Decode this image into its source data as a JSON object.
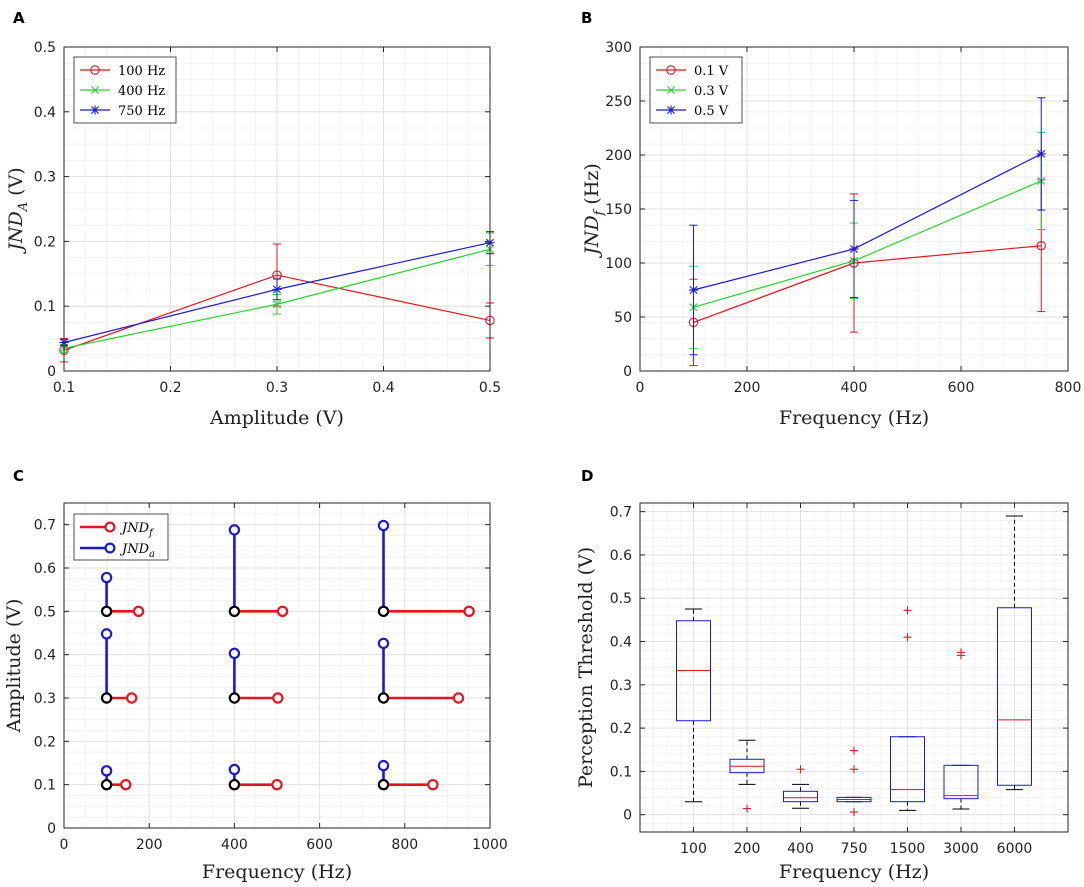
{
  "chart_data": [
    {
      "panel": "A",
      "type": "line",
      "xlabel": "Amplitude (V)",
      "ylabel_main": "JND",
      "ylabel_sub": "A",
      "ylabel_unit": "(V)",
      "xlim": [
        0.1,
        0.5
      ],
      "ylim": [
        0,
        0.5
      ],
      "xticks": [
        0.1,
        0.2,
        0.3,
        0.4,
        0.5
      ],
      "xticklabels": [
        "0.1",
        "0.2",
        "0.3",
        "0.4",
        "0.5"
      ],
      "yticks": [
        0,
        0.1,
        0.2,
        0.3,
        0.4,
        0.5
      ],
      "yticklabels": [
        "0",
        "0.1",
        "0.2",
        "0.3",
        "0.4",
        "0.5"
      ],
      "legend_position": "top-left",
      "x": [
        0.1,
        0.3,
        0.5
      ],
      "series": [
        {
          "name": "100 Hz",
          "color": "#e8141e",
          "marker": "circle",
          "values": [
            0.032,
            0.148,
            0.078
          ],
          "err": [
            0.018,
            0.048,
            0.027
          ]
        },
        {
          "name": "400 Hz",
          "color": "#22d62a",
          "marker": "x",
          "values": [
            0.035,
            0.103,
            0.188
          ],
          "err": [
            0.006,
            0.015,
            0.025
          ]
        },
        {
          "name": "750 Hz",
          "color": "#1a1ad6",
          "marker": "star",
          "values": [
            0.044,
            0.126,
            0.198
          ],
          "err": [
            0.005,
            0.016,
            0.017
          ]
        }
      ]
    },
    {
      "panel": "B",
      "type": "line",
      "xlabel": "Frequency (Hz)",
      "ylabel_main": "JND",
      "ylabel_sub": "f",
      "ylabel_unit": "(Hz)",
      "xlim": [
        0,
        800
      ],
      "ylim": [
        0,
        300
      ],
      "xticks": [
        0,
        200,
        400,
        600,
        800
      ],
      "xticklabels": [
        "0",
        "200",
        "400",
        "600",
        "800"
      ],
      "yticks": [
        0,
        50,
        100,
        150,
        200,
        250,
        300
      ],
      "yticklabels": [
        "0",
        "50",
        "100",
        "150",
        "200",
        "250",
        "300"
      ],
      "legend_position": "top-left",
      "x": [
        100,
        400,
        750
      ],
      "series": [
        {
          "name": "0.1 V",
          "color": "#e8141e",
          "marker": "circle",
          "values": [
            45,
            100,
            116
          ],
          "err": [
            40,
            64,
            61
          ]
        },
        {
          "name": "0.3 V",
          "color": "#22d62a",
          "marker": "x",
          "values": [
            59,
            102,
            176
          ],
          "err": [
            38,
            35,
            45
          ]
        },
        {
          "name": "0.5 V",
          "color": "#1a1ad6",
          "marker": "star",
          "values": [
            75,
            113,
            201
          ],
          "err": [
            60,
            45,
            52
          ]
        }
      ]
    },
    {
      "panel": "C",
      "type": "scatter",
      "xlabel": "Frequency (Hz)",
      "ylabel": "Amplitude (V)",
      "xlim": [
        0,
        1000
      ],
      "ylim": [
        0,
        0.75
      ],
      "xticks": [
        0,
        200,
        400,
        600,
        800,
        1000
      ],
      "xticklabels": [
        "0",
        "200",
        "400",
        "600",
        "800",
        "1000"
      ],
      "yticks": [
        0,
        0.1,
        0.2,
        0.3,
        0.4,
        0.5,
        0.6,
        0.7
      ],
      "yticklabels": [
        "0",
        "0.1",
        "0.2",
        "0.3",
        "0.4",
        "0.5",
        "0.6",
        "0.7"
      ],
      "legend_position": "top-left",
      "legend": [
        {
          "main": "JND",
          "sub": "f",
          "color": "#e8141e"
        },
        {
          "main": "JND",
          "sub": "a",
          "color": "#1a1ad6"
        }
      ],
      "points": [
        {
          "f": 100,
          "a": 0.1,
          "jnd_f": 45,
          "jnd_a": 0.032
        },
        {
          "f": 100,
          "a": 0.3,
          "jnd_f": 59,
          "jnd_a": 0.148
        },
        {
          "f": 100,
          "a": 0.5,
          "jnd_f": 75,
          "jnd_a": 0.078
        },
        {
          "f": 400,
          "a": 0.1,
          "jnd_f": 100,
          "jnd_a": 0.035
        },
        {
          "f": 400,
          "a": 0.3,
          "jnd_f": 102,
          "jnd_a": 0.103
        },
        {
          "f": 400,
          "a": 0.5,
          "jnd_f": 113,
          "jnd_a": 0.188
        },
        {
          "f": 750,
          "a": 0.1,
          "jnd_f": 116,
          "jnd_a": 0.044
        },
        {
          "f": 750,
          "a": 0.3,
          "jnd_f": 176,
          "jnd_a": 0.126
        },
        {
          "f": 750,
          "a": 0.5,
          "jnd_f": 201,
          "jnd_a": 0.198
        }
      ]
    },
    {
      "panel": "D",
      "type": "box",
      "xlabel": "Frequency (Hz)",
      "ylabel": "Perception Threshold (V)",
      "ylim": [
        -0.04,
        0.72
      ],
      "yticks": [
        0,
        0.1,
        0.2,
        0.3,
        0.4,
        0.5,
        0.6,
        0.7
      ],
      "yticklabels": [
        "0",
        "0.1",
        "0.2",
        "0.3",
        "0.4",
        "0.5",
        "0.6",
        "0.7"
      ],
      "categories": [
        "100",
        "200",
        "400",
        "750",
        "1500",
        "3000",
        "6000"
      ],
      "boxes": [
        {
          "q1": 0.217,
          "median": 0.333,
          "q3": 0.448,
          "whisker_low": 0.03,
          "whisker_high": 0.475,
          "outliers": []
        },
        {
          "q1": 0.097,
          "median": 0.112,
          "q3": 0.128,
          "whisker_low": 0.07,
          "whisker_high": 0.172,
          "outliers": [
            0.014
          ]
        },
        {
          "q1": 0.03,
          "median": 0.039,
          "q3": 0.054,
          "whisker_low": 0.015,
          "whisker_high": 0.07,
          "outliers": [
            0.105
          ]
        },
        {
          "q1": 0.03,
          "median": 0.035,
          "q3": 0.04,
          "whisker_low": 0.03,
          "whisker_high": 0.04,
          "outliers": [
            0.006,
            0.105,
            0.148
          ]
        },
        {
          "q1": 0.03,
          "median": 0.058,
          "q3": 0.18,
          "whisker_low": 0.01,
          "whisker_high": 0.18,
          "outliers": [
            0.41,
            0.472
          ]
        },
        {
          "q1": 0.037,
          "median": 0.044,
          "q3": 0.114,
          "whisker_low": 0.013,
          "whisker_high": 0.114,
          "outliers": [
            0.368,
            0.375
          ]
        },
        {
          "q1": 0.068,
          "median": 0.219,
          "q3": 0.478,
          "whisker_low": 0.058,
          "whisker_high": 0.69,
          "outliers": []
        }
      ]
    }
  ]
}
